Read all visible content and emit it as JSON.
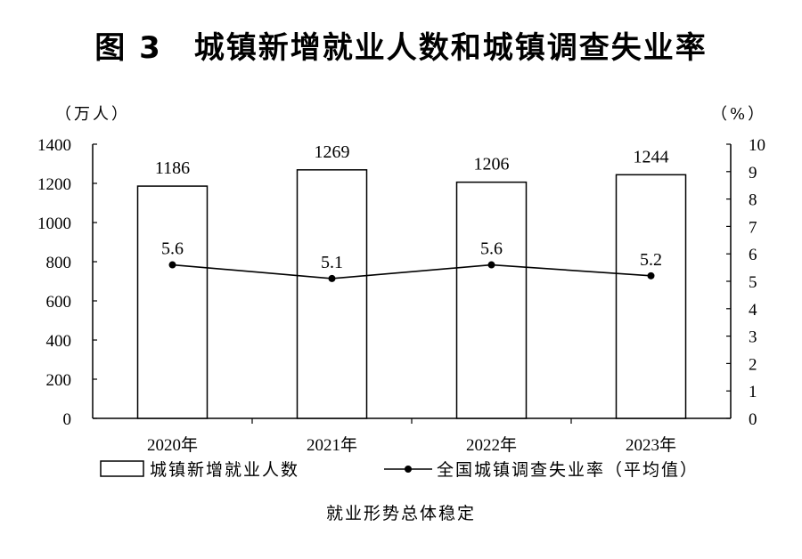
{
  "title": "图 3　城镇新增就业人数和城镇调查失业率",
  "caption": "就业形势总体稳定",
  "left_unit": "（万人）",
  "right_unit": "（%）",
  "chart_data": {
    "type": "bar",
    "categories": [
      "2020年",
      "2021年",
      "2022年",
      "2023年"
    ],
    "series": [
      {
        "name": "城镇新增就业人数",
        "type": "bar",
        "axis": "left",
        "values": [
          1186,
          1269,
          1206,
          1244
        ]
      },
      {
        "name": "全国城镇调查失业率（平均值）",
        "type": "line",
        "axis": "right",
        "values": [
          5.6,
          5.1,
          5.6,
          5.2
        ]
      }
    ],
    "y_left": {
      "min": 0,
      "max": 1400,
      "ticks": [
        "0",
        "200",
        "400",
        "600",
        "800",
        "1000",
        "1200",
        "1400"
      ]
    },
    "y_right": {
      "min": 0,
      "max": 10,
      "ticks": [
        "0",
        "1",
        "2",
        "3",
        "4",
        "5",
        "6",
        "7",
        "8",
        "9",
        "10"
      ]
    },
    "bar_labels": [
      "1186",
      "1269",
      "1206",
      "1244"
    ],
    "line_labels": [
      "5.6",
      "5.1",
      "5.6",
      "5.2"
    ],
    "grid": false,
    "legend_position": "bottom"
  }
}
